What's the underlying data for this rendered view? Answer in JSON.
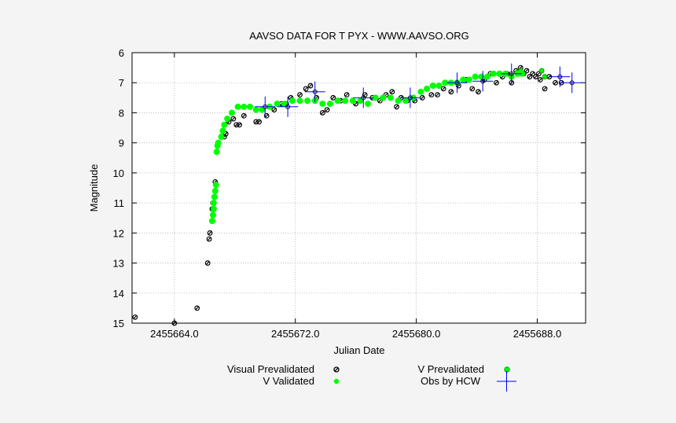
{
  "chart_data": {
    "type": "scatter",
    "title": "AAVSO DATA FOR T PYX - WWW.AAVSO.ORG",
    "xlabel": "Julian Date",
    "ylabel": "Magnitude",
    "xlim": [
      2455661.2,
      2455691.2
    ],
    "ylim": [
      15,
      6
    ],
    "y_inverted": true,
    "grid": true,
    "x_ticks": [
      2455664.0,
      2455672.0,
      2455680.0,
      2455688.0
    ],
    "x_tick_labels": [
      "2455664.0",
      "2455672.0",
      "2455680.0",
      "2455688.0"
    ],
    "y_ticks": [
      6,
      7,
      8,
      9,
      10,
      11,
      12,
      13,
      14,
      15
    ],
    "legend_position": "bottom",
    "series": [
      {
        "name": "Visual Prevalidated",
        "marker": "open-circle",
        "color": "#000000",
        "points": [
          [
            2455661.4,
            14.8
          ],
          [
            2455664.0,
            15.0
          ],
          [
            2455665.5,
            14.5
          ],
          [
            2455666.2,
            13.0
          ],
          [
            2455666.3,
            12.2
          ],
          [
            2455666.35,
            12.0
          ],
          [
            2455666.5,
            11.2
          ],
          [
            2455666.55,
            11.0
          ],
          [
            2455666.7,
            10.3
          ],
          [
            2455667.3,
            8.8
          ],
          [
            2455667.4,
            8.7
          ],
          [
            2455667.6,
            8.3
          ],
          [
            2455667.9,
            8.2
          ],
          [
            2455668.1,
            8.4
          ],
          [
            2455668.3,
            8.4
          ],
          [
            2455668.6,
            8.1
          ],
          [
            2455669.4,
            8.3
          ],
          [
            2455669.6,
            8.3
          ],
          [
            2455670.1,
            8.1
          ],
          [
            2455670.6,
            7.9
          ],
          [
            2455671.1,
            7.7
          ],
          [
            2455671.4,
            7.7
          ],
          [
            2455671.7,
            7.5
          ],
          [
            2455672.3,
            7.4
          ],
          [
            2455672.7,
            7.2
          ],
          [
            2455673.0,
            7.1
          ],
          [
            2455673.4,
            7.5
          ],
          [
            2455673.8,
            8.0
          ],
          [
            2455674.1,
            7.9
          ],
          [
            2455674.5,
            7.5
          ],
          [
            2455675.0,
            7.6
          ],
          [
            2455675.4,
            7.4
          ],
          [
            2455676.0,
            7.7
          ],
          [
            2455676.6,
            7.4
          ],
          [
            2455677.1,
            7.5
          ],
          [
            2455677.6,
            7.6
          ],
          [
            2455678.0,
            7.4
          ],
          [
            2455678.4,
            7.3
          ],
          [
            2455678.7,
            7.8
          ],
          [
            2455679.0,
            7.5
          ],
          [
            2455679.4,
            7.6
          ],
          [
            2455679.9,
            7.6
          ],
          [
            2455680.4,
            7.5
          ],
          [
            2455681.0,
            7.4
          ],
          [
            2455681.4,
            7.4
          ],
          [
            2455681.8,
            7.2
          ],
          [
            2455682.3,
            7.3
          ],
          [
            2455682.8,
            7.1
          ],
          [
            2455683.3,
            6.9
          ],
          [
            2455683.7,
            7.2
          ],
          [
            2455684.1,
            7.3
          ],
          [
            2455684.5,
            6.9
          ],
          [
            2455684.9,
            6.7
          ],
          [
            2455685.3,
            7.0
          ],
          [
            2455685.7,
            6.8
          ],
          [
            2455686.0,
            6.7
          ],
          [
            2455686.3,
            7.0
          ],
          [
            2455686.6,
            6.6
          ],
          [
            2455686.9,
            6.5
          ],
          [
            2455687.1,
            6.7
          ],
          [
            2455687.3,
            6.6
          ],
          [
            2455687.5,
            6.8
          ],
          [
            2455687.7,
            6.7
          ],
          [
            2455687.9,
            6.8
          ],
          [
            2455688.1,
            6.7
          ],
          [
            2455688.2,
            6.9
          ],
          [
            2455688.5,
            7.2
          ],
          [
            2455688.8,
            6.8
          ],
          [
            2455689.2,
            7.0
          ],
          [
            2455689.6,
            7.0
          ]
        ]
      },
      {
        "name": "V Prevalidated",
        "marker": "open-circle",
        "color": "#00ff00",
        "points": [
          [
            2455686.7,
            6.65
          ],
          [
            2455686.9,
            6.6
          ],
          [
            2455688.3,
            6.6
          ],
          [
            2455688.5,
            6.8
          ]
        ]
      },
      {
        "name": "V Validated",
        "marker": "filled-circle",
        "color": "#00ff00",
        "points": [
          [
            2455666.5,
            11.6
          ],
          [
            2455666.55,
            11.4
          ],
          [
            2455666.6,
            11.2
          ],
          [
            2455666.6,
            11.0
          ],
          [
            2455666.65,
            10.8
          ],
          [
            2455666.7,
            10.6
          ],
          [
            2455666.75,
            10.4
          ],
          [
            2455666.8,
            9.3
          ],
          [
            2455666.85,
            9.1
          ],
          [
            2455666.9,
            9.0
          ],
          [
            2455667.1,
            8.8
          ],
          [
            2455667.2,
            8.6
          ],
          [
            2455667.3,
            8.4
          ],
          [
            2455667.5,
            8.2
          ],
          [
            2455667.8,
            8.0
          ],
          [
            2455668.2,
            7.8
          ],
          [
            2455668.6,
            7.8
          ],
          [
            2455669.0,
            7.8
          ],
          [
            2455669.4,
            7.9
          ],
          [
            2455669.8,
            7.9
          ],
          [
            2455670.3,
            7.8
          ],
          [
            2455670.8,
            7.7
          ],
          [
            2455671.3,
            7.7
          ],
          [
            2455671.8,
            7.6
          ],
          [
            2455672.3,
            7.6
          ],
          [
            2455672.8,
            7.6
          ],
          [
            2455673.3,
            7.6
          ],
          [
            2455673.8,
            7.7
          ],
          [
            2455674.3,
            7.7
          ],
          [
            2455674.8,
            7.6
          ],
          [
            2455675.3,
            7.6
          ],
          [
            2455675.8,
            7.6
          ],
          [
            2455676.3,
            7.6
          ],
          [
            2455676.8,
            7.7
          ],
          [
            2455677.3,
            7.5
          ],
          [
            2455677.8,
            7.5
          ],
          [
            2455678.3,
            7.5
          ],
          [
            2455678.8,
            7.6
          ],
          [
            2455679.3,
            7.6
          ],
          [
            2455679.8,
            7.5
          ],
          [
            2455680.3,
            7.3
          ],
          [
            2455680.7,
            7.2
          ],
          [
            2455681.1,
            7.1
          ],
          [
            2455681.5,
            7.1
          ],
          [
            2455681.9,
            7.0
          ],
          [
            2455682.3,
            7.0
          ],
          [
            2455682.7,
            7.0
          ],
          [
            2455683.1,
            6.9
          ],
          [
            2455683.5,
            6.9
          ],
          [
            2455683.9,
            6.8
          ],
          [
            2455684.3,
            6.8
          ],
          [
            2455684.7,
            6.8
          ],
          [
            2455685.1,
            6.7
          ],
          [
            2455685.5,
            6.7
          ],
          [
            2455685.9,
            6.7
          ],
          [
            2455686.3,
            6.8
          ],
          [
            2455686.7,
            6.7
          ],
          [
            2455687.0,
            6.7
          ]
        ]
      },
      {
        "name": "Obs by HCW",
        "marker": "cross",
        "color": "#0000ff",
        "points": [
          [
            2455670.0,
            7.8
          ],
          [
            2455671.5,
            7.8
          ],
          [
            2455673.3,
            7.3
          ],
          [
            2455676.5,
            7.5
          ],
          [
            2455679.6,
            7.5
          ],
          [
            2455682.7,
            7.0
          ],
          [
            2455684.4,
            6.95
          ],
          [
            2455686.3,
            6.7
          ],
          [
            2455689.5,
            6.8
          ],
          [
            2455690.3,
            7.0
          ]
        ]
      }
    ]
  }
}
